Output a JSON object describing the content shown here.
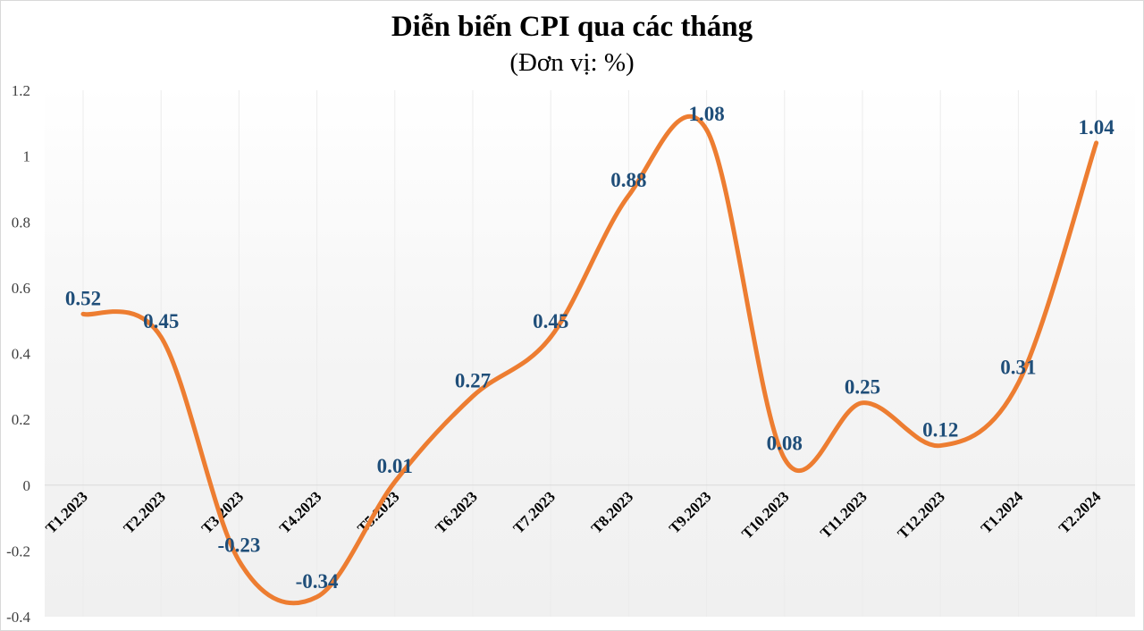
{
  "chart_data": {
    "type": "line",
    "title": "Diễn biến CPI qua các tháng",
    "subtitle": "(Đơn vị: %)",
    "xlabel": "",
    "ylabel": "",
    "categories": [
      "T1.2023",
      "T2.2023",
      "T3.2023",
      "T4.2023",
      "T5.2023",
      "T6.2023",
      "T7.2023",
      "T8.2023",
      "T9.2023",
      "T10.2023",
      "T11.2023",
      "T12.2023",
      "T1.2024",
      "T2.2024"
    ],
    "series": [
      {
        "name": "CPI",
        "values": [
          0.52,
          0.45,
          -0.23,
          -0.34,
          0.01,
          0.27,
          0.45,
          0.88,
          1.08,
          0.08,
          0.25,
          0.12,
          0.31,
          1.04
        ],
        "labels": [
          "0.52",
          "0.45",
          "-0.23",
          "-0.34",
          "0.01",
          "0.27",
          "0.45",
          "0.88",
          "1.08",
          "0.08",
          "0.25",
          "0.12",
          "0.31",
          "1.04"
        ],
        "color": "#ed7d31",
        "smooth": true
      }
    ],
    "ylim": [
      -0.4,
      1.2
    ],
    "yticks": [
      1.2,
      1,
      0.8,
      0.6,
      0.4,
      0.2,
      0,
      -0.2,
      -0.4
    ],
    "ytick_labels": [
      "1.2",
      "1",
      "0.8",
      "0.6",
      "0.4",
      "0.2",
      "0",
      "-0.2",
      "-0.4"
    ],
    "grid": {
      "horizontal": false,
      "vertical": true
    },
    "legend": null,
    "data_label_color": "#1f4e79",
    "background": "gradient white to light gray"
  }
}
